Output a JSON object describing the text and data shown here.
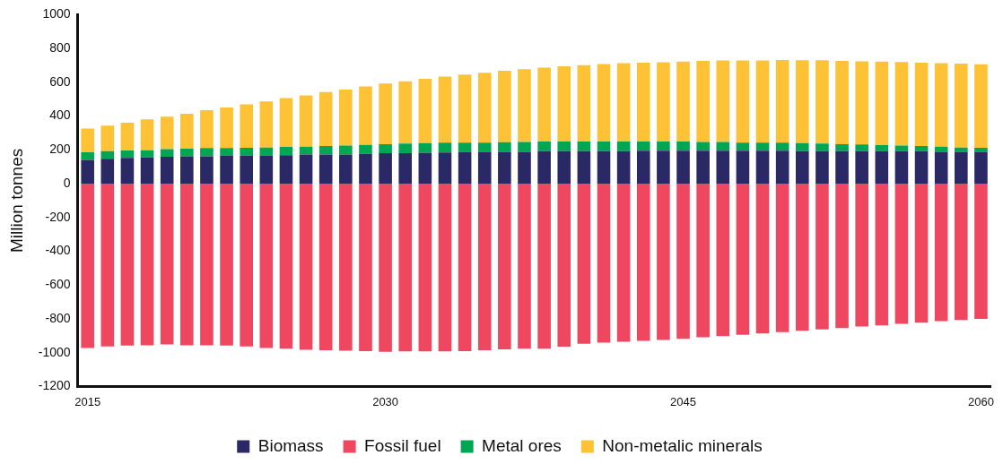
{
  "chart_data": {
    "type": "bar",
    "stacked": true,
    "ylabel": "Million tonnes",
    "ylim": [
      -1200,
      1000
    ],
    "yticks": [
      -1200,
      -1000,
      -800,
      -600,
      -400,
      -200,
      0,
      200,
      400,
      600,
      800,
      1000
    ],
    "grid": false,
    "legend": "bottom",
    "categories": [
      "2015",
      null,
      null,
      null,
      null,
      null,
      null,
      null,
      null,
      null,
      null,
      null,
      null,
      null,
      null,
      "2030",
      null,
      null,
      null,
      null,
      null,
      null,
      null,
      null,
      null,
      null,
      null,
      null,
      null,
      null,
      "2045",
      null,
      null,
      null,
      null,
      null,
      null,
      null,
      null,
      null,
      null,
      null,
      null,
      null,
      null,
      "2060"
    ],
    "series": [
      {
        "name": "Biomass",
        "color": "#2a2965",
        "values": [
          141,
          147,
          152,
          155,
          159,
          162,
          162,
          167,
          167,
          167,
          169,
          172,
          172,
          172,
          176,
          180,
          180,
          183,
          185,
          188,
          188,
          188,
          188,
          192,
          192,
          192,
          192,
          192,
          195,
          195,
          195,
          195,
          195,
          195,
          195,
          195,
          192,
          192,
          192,
          192,
          192,
          192,
          192,
          188,
          188,
          188
        ]
      },
      {
        "name": "Fossil fuel",
        "color": "#ef4760",
        "values": [
          -972,
          -963,
          -958,
          -957,
          -952,
          -957,
          -957,
          -958,
          -963,
          -972,
          -977,
          -983,
          -986,
          -988,
          -991,
          -995,
          -993,
          -993,
          -993,
          -991,
          -986,
          -981,
          -977,
          -977,
          -965,
          -948,
          -941,
          -936,
          -930,
          -925,
          -918,
          -909,
          -902,
          -895,
          -886,
          -879,
          -870,
          -863,
          -855,
          -846,
          -839,
          -830,
          -823,
          -814,
          -807,
          -800
        ]
      },
      {
        "name": "Metal ores",
        "color": "#00a651",
        "values": [
          45,
          45,
          45,
          43,
          45,
          45,
          49,
          44,
          45,
          47,
          49,
          47,
          51,
          54,
          53,
          53,
          58,
          57,
          58,
          55,
          55,
          57,
          59,
          57,
          57,
          57,
          57,
          57,
          54,
          54,
          54,
          52,
          52,
          48,
          48,
          48,
          48,
          46,
          41,
          40,
          36,
          34,
          31,
          31,
          26,
          24
        ]
      },
      {
        "name": "Non-metalic minerals",
        "color": "#fec236",
        "values": [
          140,
          152,
          164,
          182,
          193,
          207,
          224,
          240,
          258,
          273,
          288,
          304,
          319,
          331,
          347,
          360,
          368,
          380,
          391,
          403,
          413,
          423,
          430,
          438,
          445,
          452,
          459,
          464,
          467,
          469,
          474,
          480,
          482,
          486,
          486,
          489,
          490,
          492,
          494,
          492,
          494,
          494,
          493,
          494,
          496,
          494
        ]
      }
    ]
  }
}
